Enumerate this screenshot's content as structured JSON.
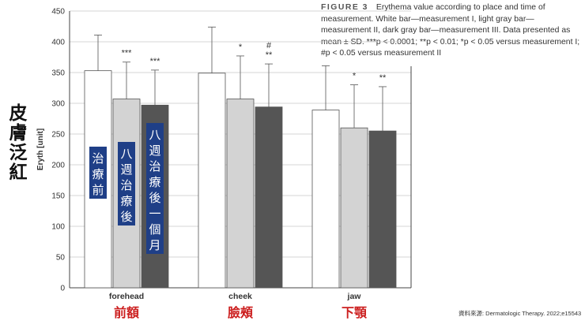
{
  "side_title": [
    "皮",
    "膚",
    "泛",
    "紅"
  ],
  "caption": {
    "figure_label": "FIGURE 3",
    "text": "Erythema value according to place and time of measurement. White bar—measurement I, light gray bar—measurement II, dark gray bar—measurement III. Data presented as mean ± SD. ***p < 0.0001; **p < 0.01; *p < 0.05 versus measurement I; #p < 0.05 versus measurement II"
  },
  "source": "資料來源: Dermatologic Therapy. 2022;e15543",
  "colors": {
    "measurement_1": "#ffffff",
    "measurement_2": "#d3d3d3",
    "measurement_3": "#555555",
    "label_box": "#1f3f87",
    "region_label": "#cc1f1f"
  },
  "chart_data": {
    "type": "bar",
    "ylabel": "Eryth [unit]",
    "ylim": [
      0,
      450
    ],
    "yticks": [
      0,
      50,
      100,
      150,
      200,
      250,
      300,
      350,
      400,
      450
    ],
    "categories": [
      "forehead",
      "cheek",
      "jaw"
    ],
    "category_labels_zh": [
      "前額",
      "臉頰",
      "下顎"
    ],
    "series": [
      {
        "name": "治療前",
        "values": [
          353,
          349,
          289
        ],
        "sd": [
          58,
          75,
          72
        ]
      },
      {
        "name": "八週治療後",
        "values": [
          307,
          307,
          260
        ],
        "sd": [
          60,
          70,
          70
        ]
      },
      {
        "name": "八週治療後一個月",
        "values": [
          297,
          294,
          255
        ],
        "sd": [
          57,
          70,
          72
        ]
      }
    ],
    "significance": [
      [
        "",
        "***",
        "***"
      ],
      [
        "",
        "*",
        "**|#"
      ],
      [
        "",
        "*",
        "**"
      ]
    ]
  }
}
